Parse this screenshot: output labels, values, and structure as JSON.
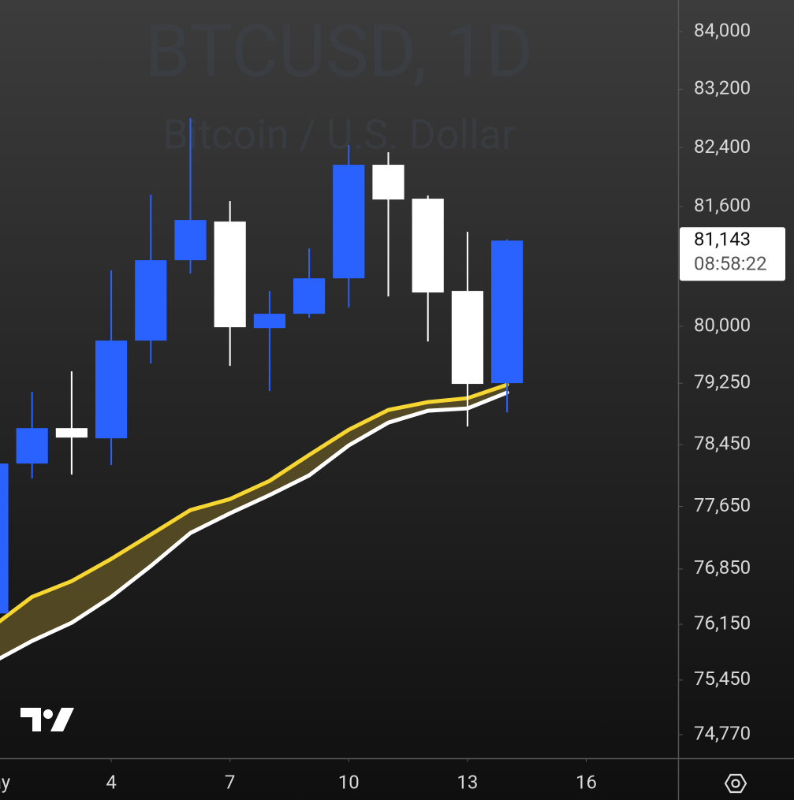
{
  "chart_data": {
    "type": "candlestick",
    "title": "BTCUSD, 1D",
    "subtitle": "Bitcoin / U.S. Dollar",
    "x": [
      1,
      2,
      3,
      4,
      5,
      6,
      7,
      8,
      9,
      10,
      11,
      12,
      13,
      14
    ],
    "open": [
      76287,
      78203,
      78663,
      78530,
      79811,
      80880,
      81399,
      79977,
      80166,
      80638,
      82168,
      81708,
      80470,
      79251
    ],
    "high": [
      78203,
      79137,
      79406,
      80743,
      81762,
      82803,
      81676,
      80470,
      81039,
      82437,
      82339,
      81750,
      81261,
      81160
    ],
    "low": [
      76287,
      78009,
      78060,
      78183,
      79509,
      80701,
      79478,
      79147,
      80114,
      80250,
      80396,
      79800,
      78684,
      78869
    ],
    "close": [
      78203,
      78663,
      78540,
      79811,
      80880,
      81420,
      79988,
      80166,
      80638,
      82168,
      81697,
      80449,
      79241,
      81143
    ],
    "up_color": "#2962ff",
    "down_color": "#ffffff",
    "series": [
      {
        "color": "#f7d632",
        "values": [
          76118,
          76496,
          76696,
          76978,
          77289,
          77603,
          77745,
          77979,
          78315,
          78642,
          78900,
          79003,
          79054,
          79230
        ]
      },
      {
        "color": "#ffffff",
        "values": [
          75672,
          75940,
          76169,
          76496,
          76888,
          77309,
          77562,
          77796,
          78050,
          78438,
          78735,
          78890,
          78920,
          79127
        ]
      }
    ],
    "fill_color": "#5c5024",
    "xlim": [
      1.19,
      18.32
    ],
    "xticks": [
      {
        "value": 1,
        "label": "May"
      },
      4,
      7,
      10,
      13,
      16
    ],
    "ylim": [
      74480,
      84440
    ],
    "log_scale": true,
    "yticks": [
      {
        "value": 84000,
        "label": "84,000"
      },
      {
        "value": 83200,
        "label": "83,200"
      },
      {
        "value": 82400,
        "label": "82,400"
      },
      {
        "value": 81600,
        "label": "81,600"
      },
      {
        "value": 80000,
        "label": "80,000"
      },
      {
        "value": 79250,
        "label": "79,250"
      },
      {
        "value": 78450,
        "label": "78,450"
      },
      {
        "value": 77650,
        "label": "77,650"
      },
      {
        "value": 76850,
        "label": "76,850"
      },
      {
        "value": 76150,
        "label": "76,150"
      },
      {
        "value": 75450,
        "label": "75,450"
      },
      {
        "value": 74770,
        "label": "74,770"
      }
    ],
    "last_price": {
      "value": 81143,
      "label": "81,143"
    },
    "countdown": "08:58:22"
  }
}
